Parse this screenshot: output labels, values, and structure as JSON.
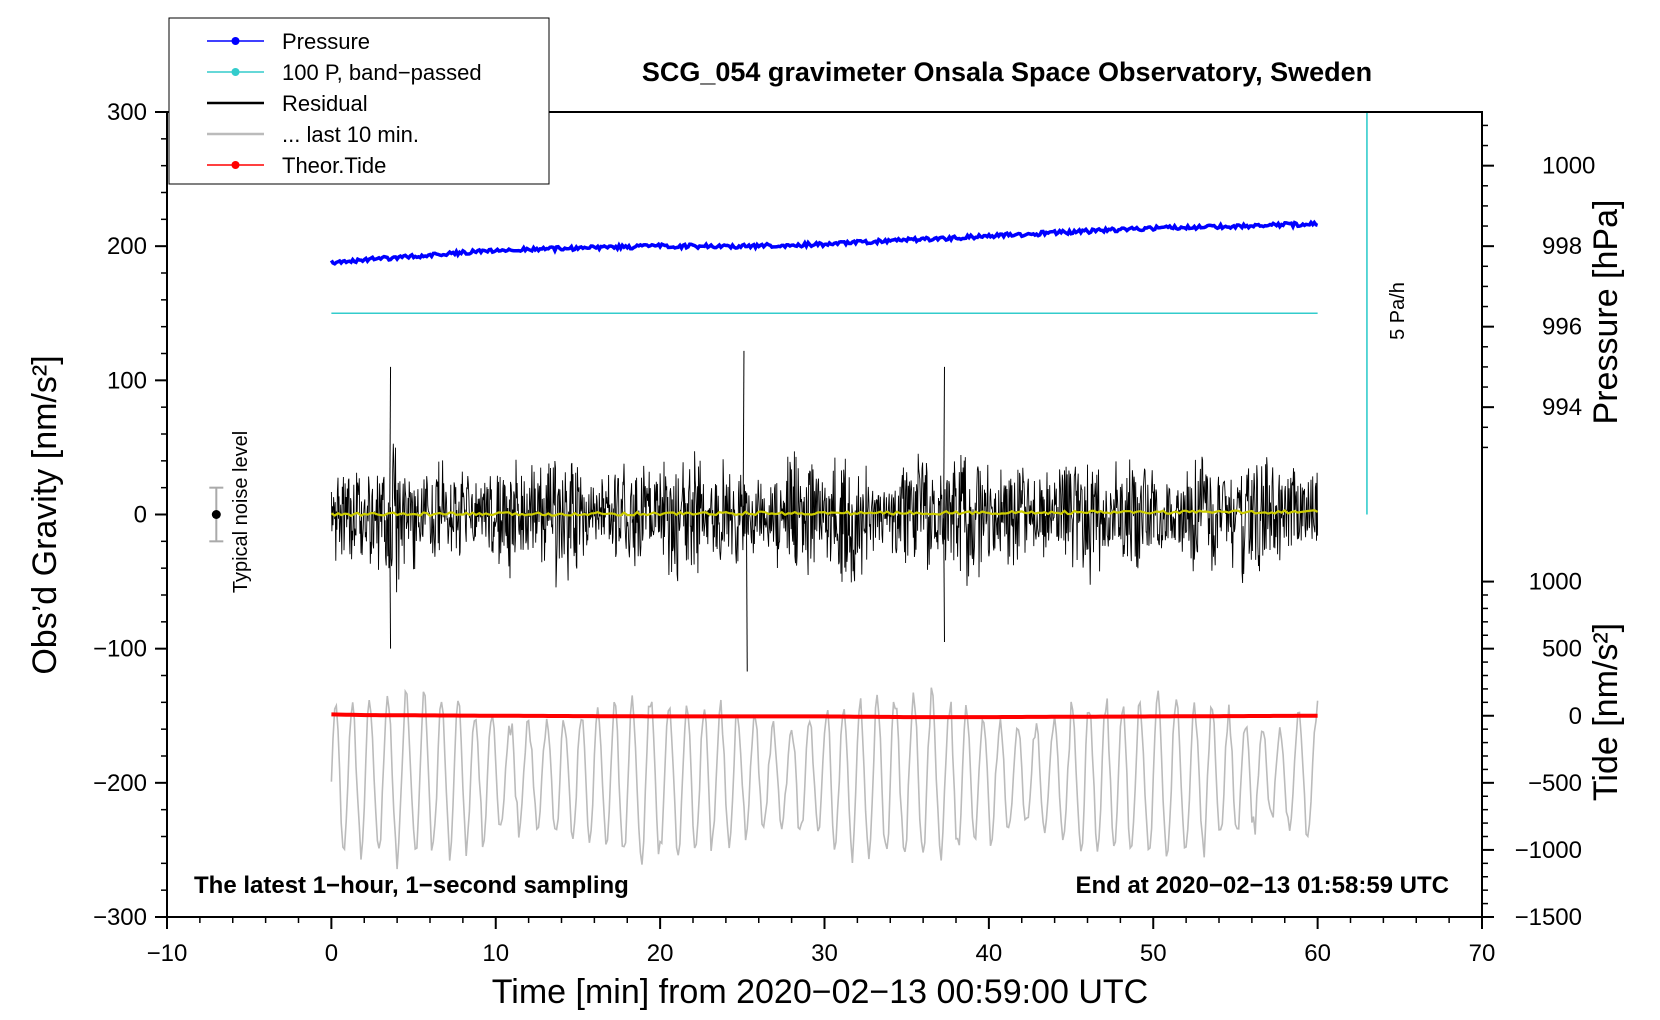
{
  "chart_data": {
    "type": "line",
    "title": "SCG_054 gravimeter Onsala Space Observatory, Sweden",
    "xlabel": "Time [min] from 2020−02−13 00:59:00 UTC",
    "ylabel_left": "Obs’d Gravity [nm/s²]",
    "ylabel_right_pressure": "Pressure [hPa]",
    "ylabel_right_tide": "Tide [nm/s²]",
    "xlim": [
      -10,
      70
    ],
    "ylim": [
      -300,
      300
    ],
    "x_ticks": [
      -10,
      0,
      10,
      20,
      30,
      40,
      50,
      60,
      70
    ],
    "x_tick_labels": [
      "−10",
      "0",
      "10",
      "20",
      "30",
      "40",
      "50",
      "60",
      "70"
    ],
    "y_ticks": [
      -300,
      -200,
      -100,
      0,
      100,
      200,
      300
    ],
    "y_tick_labels": [
      "−300",
      "−200",
      "−100",
      "0",
      "100",
      "200",
      "300"
    ],
    "pressure_axis": {
      "ticks": [
        994,
        996,
        998,
        1000
      ],
      "tick_labels": [
        "994",
        "996",
        "998",
        "1000"
      ],
      "ref_value": 998,
      "ref_gravity": 200,
      "units_per_hpa": 30
    },
    "tide_axis": {
      "ticks": [
        -1500,
        -1000,
        -500,
        0,
        500,
        1000
      ],
      "tick_labels": [
        "−1500",
        "−1000",
        "−500",
        "0",
        "500",
        "1000"
      ],
      "ref_value": -1500,
      "ref_gravity": -300,
      "units_per_nms2": 0.1
    },
    "legend": {
      "position": "top-left",
      "entries": [
        {
          "label": "Pressure",
          "color": "#0000ff",
          "marker": true
        },
        {
          "label": "100 P, band−passed",
          "color": "#33cccc",
          "marker": true
        },
        {
          "label": "Residual",
          "color": "#000000",
          "marker": false
        },
        {
          "label": "... last 10 min.",
          "color": "#bbbbbb",
          "marker": false
        },
        {
          "label": "Theor.Tide",
          "color": "#ff0000",
          "marker": true
        }
      ]
    },
    "series": [
      {
        "name": "Pressure",
        "color": "#0000ff",
        "axis": "pressure",
        "x": [
          0,
          5,
          10,
          15,
          20,
          25,
          30,
          35,
          40,
          45,
          50,
          55,
          60
        ],
        "values": [
          997.6,
          997.75,
          997.9,
          997.95,
          998.0,
          998.0,
          998.05,
          998.15,
          998.25,
          998.35,
          998.45,
          998.5,
          998.55
        ]
      },
      {
        "name": "100 P, band−passed",
        "color": "#33cccc",
        "axis": "gravity",
        "x": [
          0,
          60
        ],
        "values": [
          150,
          150
        ]
      },
      {
        "name": "Residual",
        "color": "#000000",
        "axis": "gravity",
        "x_range": [
          0,
          60
        ],
        "approx_amplitude": 50,
        "peaks": [
          {
            "x": 3.6,
            "y": 110
          },
          {
            "x": 3.6,
            "y": -100
          },
          {
            "x": 25.1,
            "y": 122
          },
          {
            "x": 25.3,
            "y": -117
          },
          {
            "x": 37.3,
            "y": 110
          },
          {
            "x": 37.3,
            "y": -95
          }
        ]
      },
      {
        "name": "Residual mean",
        "color": "#cccc00",
        "axis": "gravity",
        "x": [
          0,
          60
        ],
        "values": [
          0,
          2
        ]
      },
      {
        "name": "... last 10 min.",
        "color": "#bbbbbb",
        "axis": "gravity",
        "x_range": [
          0,
          60
        ],
        "center": -195,
        "approx_amplitude": 40,
        "min": -265,
        "max": -120
      },
      {
        "name": "Theor.Tide",
        "color": "#ff0000",
        "axis": "tide",
        "x": [
          0,
          2,
          10,
          20,
          30,
          35,
          40,
          50,
          60
        ],
        "values": [
          10,
          5,
          0,
          -5,
          -5,
          -10,
          -10,
          -5,
          0
        ]
      }
    ],
    "annotations": {
      "noise_label": "Typical noise level",
      "noise_level": {
        "x": -7,
        "center": 0,
        "half_range": 20
      },
      "rate_label": "5 Pa/h",
      "rate_bar": {
        "x": 63,
        "from": 0,
        "to": 300
      },
      "bottom_left": "The latest 1−hour, 1−second sampling",
      "bottom_right": "End at 2020−02−13 01:58:59 UTC"
    }
  }
}
